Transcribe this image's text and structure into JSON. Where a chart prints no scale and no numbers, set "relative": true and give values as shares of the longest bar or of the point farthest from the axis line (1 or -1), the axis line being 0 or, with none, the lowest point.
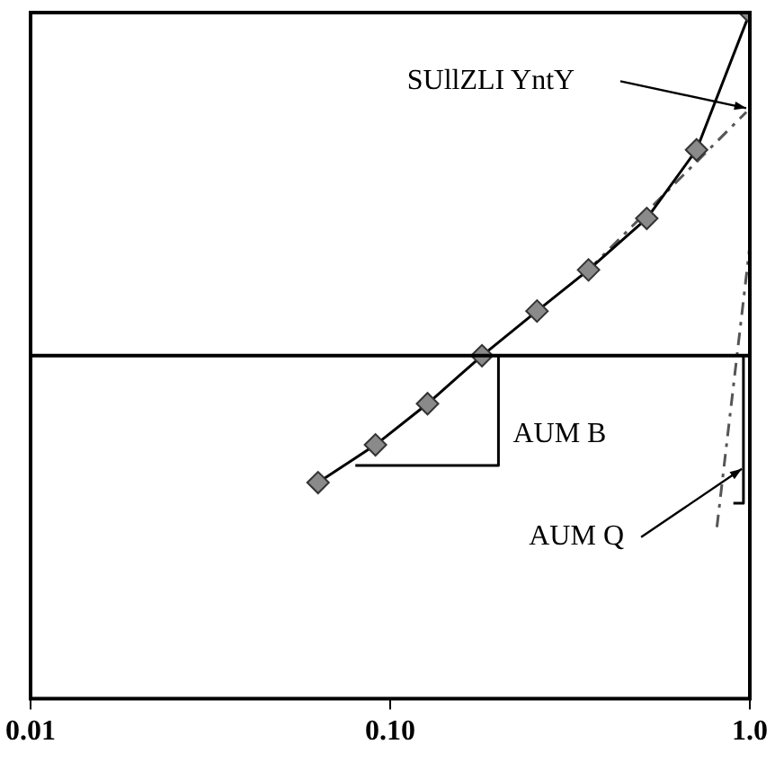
{
  "chart_data": {
    "type": "line",
    "relative": true,
    "log": "x",
    "grid": false,
    "legend": false,
    "tick_labels": "x",
    "xlim": [
      0.01,
      1
    ],
    "xticks": [
      {
        "value": 0.01,
        "label": "0.01"
      },
      {
        "value": 0.1,
        "label": "0.10"
      },
      {
        "value": 1,
        "label": "1.0"
      }
    ],
    "series": [
      {
        "color": "#000000",
        "marker": "diamond",
        "line_style": "solid",
        "x": [
          0.063,
          0.091,
          0.127,
          0.18,
          0.256,
          0.356,
          0.517,
          0.711,
          1.0
        ],
        "values": [
          -0.37,
          -0.26,
          -0.14,
          0,
          0.13,
          0.25,
          0.4,
          0.6,
          1
        ]
      },
      {
        "color": "#555555",
        "marker": "none",
        "line_style": "dashed",
        "x": [
          0.356,
          0.978
        ],
        "values": [
          0.25,
          0.71
        ]
      },
      {
        "color": "#555555",
        "marker": "none",
        "line_style": "dashed",
        "x": [
          0.81,
          1.0
        ],
        "values": [
          -0.5,
          0.32
        ]
      },
      {
        "color": "#000000",
        "marker": "none",
        "line_style": "solid",
        "x": [
          0.08,
          0.2,
          0.2
        ],
        "values": [
          -0.32,
          -0.32,
          0
        ]
      },
      {
        "color": "#000000",
        "marker": "none",
        "line_style": "solid",
        "x": [
          0.9,
          0.96,
          0.96
        ],
        "values": [
          -0.43,
          -0.43,
          0
        ]
      }
    ],
    "annotations": [
      "SUllZLI YntY",
      {
        "text": "AUM B",
        "x": 0.2,
        "y": -0.23
      },
      {
        "text": "AUM Q",
        "x": 0.95,
        "y": -0.33
      }
    ]
  }
}
